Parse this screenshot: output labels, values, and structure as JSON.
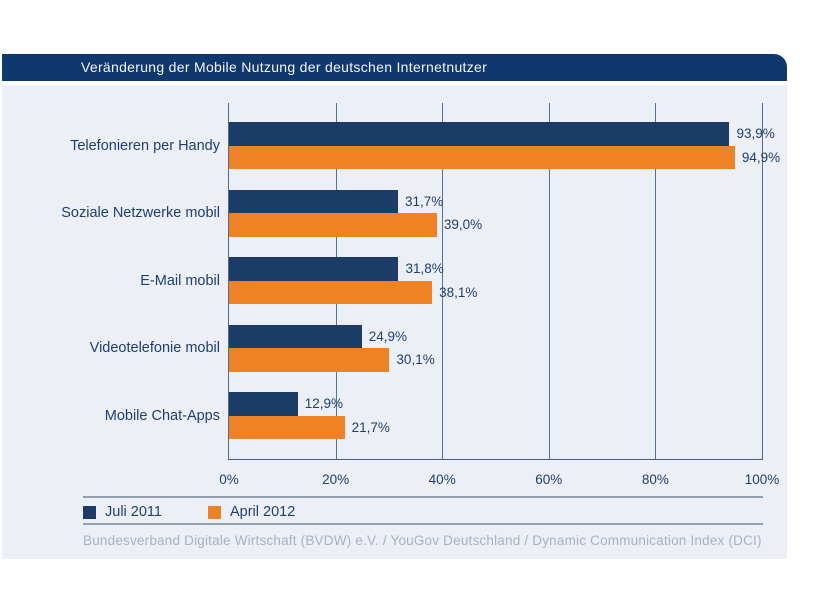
{
  "title": "Veränderung der Mobile Nutzung der deutschen Internetnutzer",
  "source": "Bundesverband Digitale Wirtschaft (BVDW) e.V. / YouGov Deutschland / Dynamic Communication Index (DCI)",
  "colors": {
    "title_bar_bg": "#0f386e",
    "panel_bg": "#edeff6",
    "navy": "#1b3c67",
    "orange": "#ee8224",
    "grid": "#54719a",
    "rule": "#93a0b0",
    "text_navy": "#1d3f6e",
    "source_text": "#a7b1c2"
  },
  "chart_data": {
    "type": "bar",
    "orientation": "horizontal",
    "title": "Veränderung der Mobile Nutzung der deutschen Internetnutzer",
    "categories": [
      "Telefonieren per Handy",
      "Soziale Netzwerke mobil",
      "E-Mail mobil",
      "Videotelefonie mobil",
      "Mobile Chat-Apps"
    ],
    "series": [
      {
        "name": "Juli 2011",
        "color": "#1b3c67",
        "values": [
          93.9,
          31.7,
          31.8,
          24.9,
          12.9
        ],
        "value_labels": [
          "93,9%",
          "31,7%",
          "31,8%",
          "24,9%",
          "12,9%"
        ]
      },
      {
        "name": "April 2012",
        "color": "#ee8224",
        "values": [
          94.9,
          39.0,
          38.1,
          30.1,
          21.7
        ],
        "value_labels": [
          "94,9%",
          "39,0%",
          "38,1%",
          "30,1%",
          "21,7%"
        ]
      }
    ],
    "xlim": [
      0,
      100
    ],
    "x_ticks": [
      {
        "value": 0,
        "label": "0%"
      },
      {
        "value": 20,
        "label": "20%"
      },
      {
        "value": 40,
        "label": "40%"
      },
      {
        "value": 60,
        "label": "60%"
      },
      {
        "value": 80,
        "label": "80%"
      },
      {
        "value": 100,
        "label": "100%"
      }
    ],
    "grid": true,
    "legend_position": "bottom"
  }
}
